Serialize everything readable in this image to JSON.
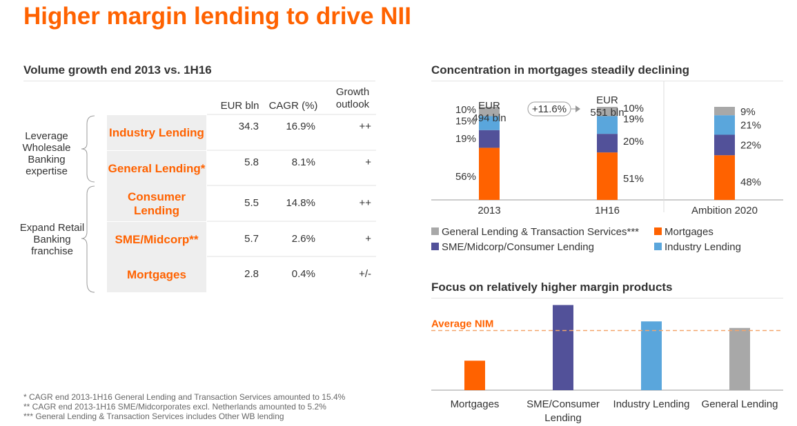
{
  "title": "Higher margin lending to drive NII",
  "left": {
    "section_title": "Volume growth end 2013 vs. 1H16",
    "columns": [
      "EUR bln",
      "CAGR (%)",
      "Growth outlook"
    ],
    "groups": [
      {
        "label": "Leverage Wholesale Banking expertise"
      },
      {
        "label": "Expand Retail Banking franchise"
      }
    ],
    "rows": [
      {
        "label": "Industry Lending",
        "eur": "34.3",
        "cagr": "16.9%",
        "outlook": "++"
      },
      {
        "label": "General Lending*",
        "eur": "5.8",
        "cagr": "8.1%",
        "outlook": "+"
      },
      {
        "label": "Consumer Lending",
        "eur": "5.5",
        "cagr": "14.8%",
        "outlook": "++"
      },
      {
        "label": "SME/Midcorp**",
        "eur": "5.7",
        "cagr": "2.6%",
        "outlook": "+"
      },
      {
        "label": "Mortgages",
        "eur": "2.8",
        "cagr": "0.4%",
        "outlook": "+/-"
      }
    ],
    "footnotes": [
      "* CAGR end 2013-1H16 General Lending and Transaction Services amounted to 15.4%",
      "** CAGR end 2013-1H16 SME/Midcorporates excl. Netherlands amounted to 5.2%",
      "*** General Lending & Transaction Services includes Other WB  lending"
    ]
  },
  "colors": {
    "orange": "#ff6200",
    "purple": "#525199",
    "blue": "#5aa6dc",
    "grey": "#a8a8a8"
  },
  "chart_data": [
    {
      "type": "bar",
      "stacked": true,
      "title": "Concentration in mortgages steadily declining",
      "categories": [
        "2013",
        "1H16",
        "Ambition 2020"
      ],
      "series": [
        {
          "name": "Mortgages",
          "color": "#ff6200",
          "values": [
            56,
            51,
            48
          ]
        },
        {
          "name": "SME/Midcorp/Consumer Lending",
          "color": "#525199",
          "values": [
            19,
            20,
            22
          ]
        },
        {
          "name": "Industry Lending",
          "color": "#5aa6dc",
          "values": [
            15,
            19,
            21
          ]
        },
        {
          "name": "General Lending & Transaction Services***",
          "color": "#a8a8a8",
          "values": [
            10,
            10,
            9
          ]
        }
      ],
      "totals": [
        "EUR\n494 bln",
        "EUR\n551 bln",
        ""
      ],
      "totals_text": [
        [
          "EUR",
          "494 bln"
        ],
        [
          "EUR",
          "551 bln"
        ]
      ],
      "growth_annotation": "+11.6%",
      "legend": [
        {
          "name": "General Lending & Transaction Services***",
          "color": "#a8a8a8"
        },
        {
          "name": "Mortgages",
          "color": "#ff6200"
        },
        {
          "name": "SME/Midcorp/Consumer Lending",
          "color": "#525199"
        },
        {
          "name": "Industry Lending",
          "color": "#5aa6dc"
        }
      ]
    },
    {
      "type": "bar",
      "title": "Focus on relatively higher margin products",
      "categories": [
        "Mortgages",
        "SME/Consumer Lending",
        "Industry Lending",
        "General Lending"
      ],
      "values": [
        0.45,
        1.3,
        1.05,
        0.95
      ],
      "colors": [
        "#ff6200",
        "#525199",
        "#5aa6dc",
        "#a8a8a8"
      ],
      "reference_line": {
        "label": "Average NIM",
        "value": 0.9
      }
    }
  ]
}
